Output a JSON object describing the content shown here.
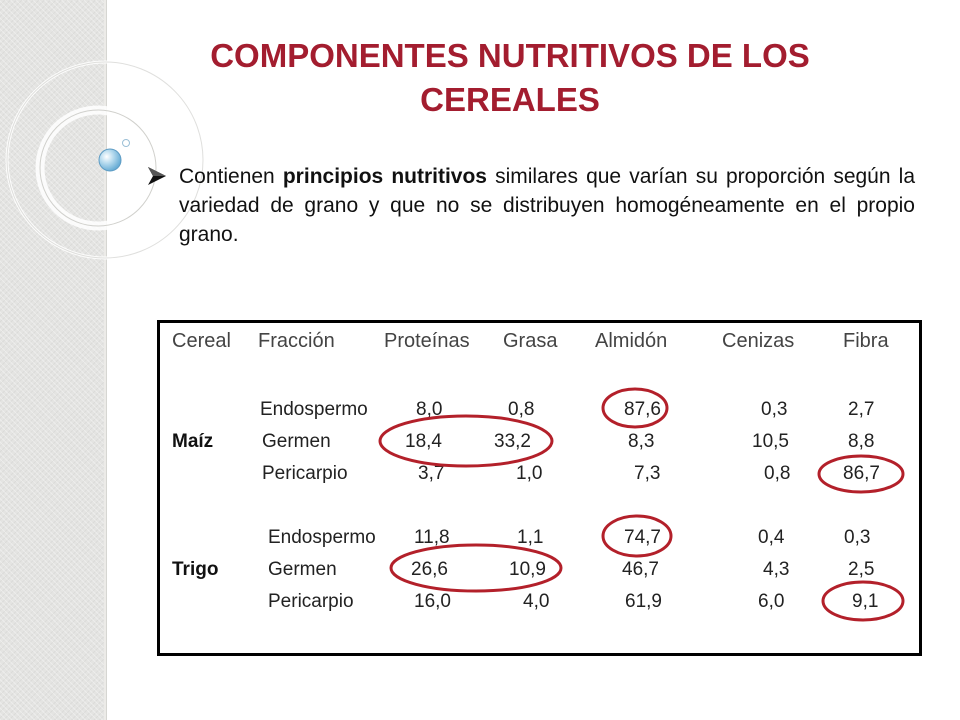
{
  "slide": {
    "title_line1": "COMPONENTES NUTRITIVOS DE LOS",
    "title_line2": "CEREALES",
    "bullet": {
      "text_before": "Contienen ",
      "text_bold": "principios nutritivos",
      "text_after": " similares que varían su proporción según la variedad de grano y que no se distribuyen homogéneamente en el propio grano."
    }
  },
  "table": {
    "headers": [
      "Cereal",
      "Fracción",
      "Proteínas",
      "Grasa",
      "Almidón",
      "Cenizas",
      "Fibra"
    ],
    "groups": [
      {
        "cereal": "Maíz",
        "rows": [
          {
            "fraction": "Endospermo",
            "values": [
              "8,0",
              "0,8",
              "87,6",
              "0,3",
              "2,7"
            ]
          },
          {
            "fraction": "Germen",
            "values": [
              "18,4",
              "33,2",
              "8,3",
              "10,5",
              "8,8"
            ]
          },
          {
            "fraction": "Pericarpio",
            "values": [
              "3,7",
              "1,0",
              "7,3",
              "0,8",
              "86,7"
            ]
          }
        ]
      },
      {
        "cereal": "Trigo",
        "rows": [
          {
            "fraction": "Endospermo",
            "values": [
              "11,8",
              "1,1",
              "74,7",
              "0,4",
              "0,3"
            ]
          },
          {
            "fraction": "Germen",
            "values": [
              "26,6",
              "10,9",
              "46,7",
              "4,3",
              "2,5"
            ]
          },
          {
            "fraction": "Pericarpio",
            "values": [
              "16,0",
              "4,0",
              "61,9",
              "6,0",
              "9,1"
            ]
          }
        ]
      }
    ]
  },
  "colors": {
    "title": "#a31d2f",
    "highlight_ring": "#b3202a",
    "arrow": "#111111"
  }
}
